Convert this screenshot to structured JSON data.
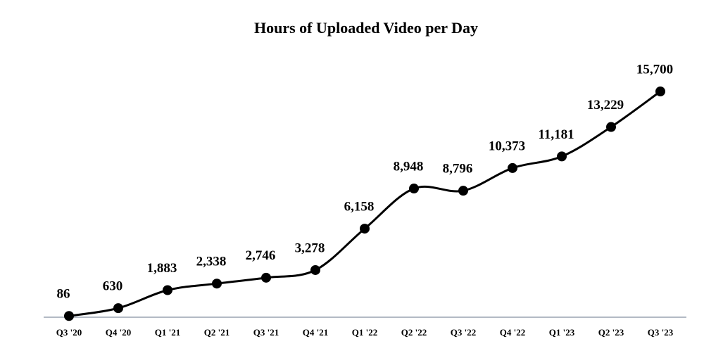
{
  "chart_data": {
    "type": "line",
    "title": "Hours of Uploaded Video per Day",
    "categories": [
      "Q3 '20",
      "Q4 '20",
      "Q1 '21",
      "Q2 '21",
      "Q3 '21",
      "Q4 '21",
      "Q1 '22",
      "Q2 '22",
      "Q3 '22",
      "Q4 '22",
      "Q1 '23",
      "Q2 '23",
      "Q3 '23"
    ],
    "values": [
      86,
      630,
      1883,
      2338,
      2746,
      3278,
      6158,
      8948,
      8796,
      10373,
      11181,
      13229,
      15700
    ],
    "value_labels": [
      "86",
      "630",
      "1,883",
      "2,338",
      "2,746",
      "3,278",
      "6,158",
      "8,948",
      "8,796",
      "10,373",
      "11,181",
      "13,229",
      "15,700"
    ],
    "color": "#000000",
    "smooth": true
  }
}
